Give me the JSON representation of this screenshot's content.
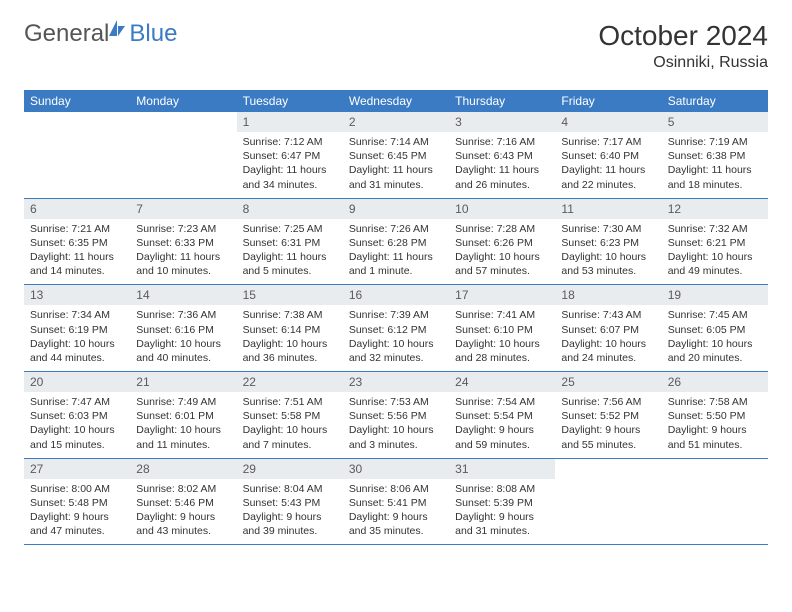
{
  "logo": {
    "text_general": "General",
    "text_blue": "Blue"
  },
  "title": "October 2024",
  "location": "Osinniki, Russia",
  "colors": {
    "header_bg": "#3b7bc4",
    "daynum_bg": "#e9ecef",
    "text": "#333333",
    "logo_gray": "#555555",
    "logo_blue": "#3b7bc4"
  },
  "days_of_week": [
    "Sunday",
    "Monday",
    "Tuesday",
    "Wednesday",
    "Thursday",
    "Friday",
    "Saturday"
  ],
  "weeks": [
    [
      null,
      null,
      {
        "n": "1",
        "sr": "Sunrise: 7:12 AM",
        "ss": "Sunset: 6:47 PM",
        "dl": "Daylight: 11 hours and 34 minutes."
      },
      {
        "n": "2",
        "sr": "Sunrise: 7:14 AM",
        "ss": "Sunset: 6:45 PM",
        "dl": "Daylight: 11 hours and 31 minutes."
      },
      {
        "n": "3",
        "sr": "Sunrise: 7:16 AM",
        "ss": "Sunset: 6:43 PM",
        "dl": "Daylight: 11 hours and 26 minutes."
      },
      {
        "n": "4",
        "sr": "Sunrise: 7:17 AM",
        "ss": "Sunset: 6:40 PM",
        "dl": "Daylight: 11 hours and 22 minutes."
      },
      {
        "n": "5",
        "sr": "Sunrise: 7:19 AM",
        "ss": "Sunset: 6:38 PM",
        "dl": "Daylight: 11 hours and 18 minutes."
      }
    ],
    [
      {
        "n": "6",
        "sr": "Sunrise: 7:21 AM",
        "ss": "Sunset: 6:35 PM",
        "dl": "Daylight: 11 hours and 14 minutes."
      },
      {
        "n": "7",
        "sr": "Sunrise: 7:23 AM",
        "ss": "Sunset: 6:33 PM",
        "dl": "Daylight: 11 hours and 10 minutes."
      },
      {
        "n": "8",
        "sr": "Sunrise: 7:25 AM",
        "ss": "Sunset: 6:31 PM",
        "dl": "Daylight: 11 hours and 5 minutes."
      },
      {
        "n": "9",
        "sr": "Sunrise: 7:26 AM",
        "ss": "Sunset: 6:28 PM",
        "dl": "Daylight: 11 hours and 1 minute."
      },
      {
        "n": "10",
        "sr": "Sunrise: 7:28 AM",
        "ss": "Sunset: 6:26 PM",
        "dl": "Daylight: 10 hours and 57 minutes."
      },
      {
        "n": "11",
        "sr": "Sunrise: 7:30 AM",
        "ss": "Sunset: 6:23 PM",
        "dl": "Daylight: 10 hours and 53 minutes."
      },
      {
        "n": "12",
        "sr": "Sunrise: 7:32 AM",
        "ss": "Sunset: 6:21 PM",
        "dl": "Daylight: 10 hours and 49 minutes."
      }
    ],
    [
      {
        "n": "13",
        "sr": "Sunrise: 7:34 AM",
        "ss": "Sunset: 6:19 PM",
        "dl": "Daylight: 10 hours and 44 minutes."
      },
      {
        "n": "14",
        "sr": "Sunrise: 7:36 AM",
        "ss": "Sunset: 6:16 PM",
        "dl": "Daylight: 10 hours and 40 minutes."
      },
      {
        "n": "15",
        "sr": "Sunrise: 7:38 AM",
        "ss": "Sunset: 6:14 PM",
        "dl": "Daylight: 10 hours and 36 minutes."
      },
      {
        "n": "16",
        "sr": "Sunrise: 7:39 AM",
        "ss": "Sunset: 6:12 PM",
        "dl": "Daylight: 10 hours and 32 minutes."
      },
      {
        "n": "17",
        "sr": "Sunrise: 7:41 AM",
        "ss": "Sunset: 6:10 PM",
        "dl": "Daylight: 10 hours and 28 minutes."
      },
      {
        "n": "18",
        "sr": "Sunrise: 7:43 AM",
        "ss": "Sunset: 6:07 PM",
        "dl": "Daylight: 10 hours and 24 minutes."
      },
      {
        "n": "19",
        "sr": "Sunrise: 7:45 AM",
        "ss": "Sunset: 6:05 PM",
        "dl": "Daylight: 10 hours and 20 minutes."
      }
    ],
    [
      {
        "n": "20",
        "sr": "Sunrise: 7:47 AM",
        "ss": "Sunset: 6:03 PM",
        "dl": "Daylight: 10 hours and 15 minutes."
      },
      {
        "n": "21",
        "sr": "Sunrise: 7:49 AM",
        "ss": "Sunset: 6:01 PM",
        "dl": "Daylight: 10 hours and 11 minutes."
      },
      {
        "n": "22",
        "sr": "Sunrise: 7:51 AM",
        "ss": "Sunset: 5:58 PM",
        "dl": "Daylight: 10 hours and 7 minutes."
      },
      {
        "n": "23",
        "sr": "Sunrise: 7:53 AM",
        "ss": "Sunset: 5:56 PM",
        "dl": "Daylight: 10 hours and 3 minutes."
      },
      {
        "n": "24",
        "sr": "Sunrise: 7:54 AM",
        "ss": "Sunset: 5:54 PM",
        "dl": "Daylight: 9 hours and 59 minutes."
      },
      {
        "n": "25",
        "sr": "Sunrise: 7:56 AM",
        "ss": "Sunset: 5:52 PM",
        "dl": "Daylight: 9 hours and 55 minutes."
      },
      {
        "n": "26",
        "sr": "Sunrise: 7:58 AM",
        "ss": "Sunset: 5:50 PM",
        "dl": "Daylight: 9 hours and 51 minutes."
      }
    ],
    [
      {
        "n": "27",
        "sr": "Sunrise: 8:00 AM",
        "ss": "Sunset: 5:48 PM",
        "dl": "Daylight: 9 hours and 47 minutes."
      },
      {
        "n": "28",
        "sr": "Sunrise: 8:02 AM",
        "ss": "Sunset: 5:46 PM",
        "dl": "Daylight: 9 hours and 43 minutes."
      },
      {
        "n": "29",
        "sr": "Sunrise: 8:04 AM",
        "ss": "Sunset: 5:43 PM",
        "dl": "Daylight: 9 hours and 39 minutes."
      },
      {
        "n": "30",
        "sr": "Sunrise: 8:06 AM",
        "ss": "Sunset: 5:41 PM",
        "dl": "Daylight: 9 hours and 35 minutes."
      },
      {
        "n": "31",
        "sr": "Sunrise: 8:08 AM",
        "ss": "Sunset: 5:39 PM",
        "dl": "Daylight: 9 hours and 31 minutes."
      },
      null,
      null
    ]
  ]
}
